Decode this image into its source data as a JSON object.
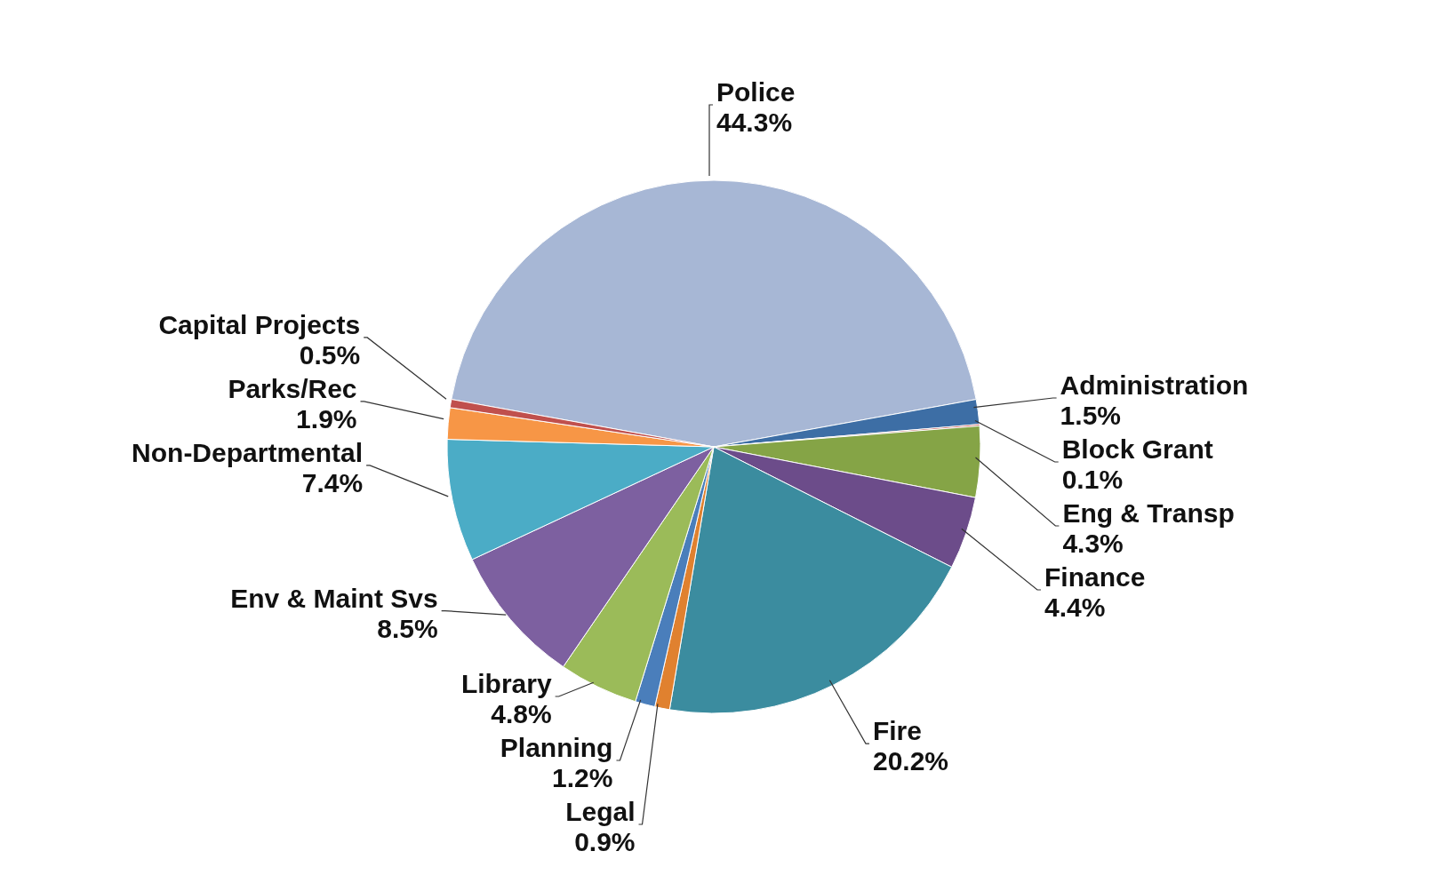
{
  "chart_data": {
    "type": "pie",
    "categories": [
      "Police",
      "Administration",
      "Block Grant",
      "Eng & Transp",
      "Finance",
      "Fire",
      "Legal",
      "Planning",
      "Library",
      "Env & Maint Svs",
      "Non-Departmental",
      "Parks/Rec",
      "Capital Projects"
    ],
    "values": [
      44.3,
      1.5,
      0.1,
      4.3,
      4.4,
      20.2,
      0.9,
      1.2,
      4.8,
      8.5,
      7.4,
      1.9,
      0.5
    ],
    "value_labels": [
      "44.3%",
      "1.5%",
      "0.1%",
      "4.3%",
      "4.4%",
      "20.2%",
      "0.9%",
      "1.2%",
      "4.8%",
      "8.5%",
      "7.4%",
      "1.9%",
      "0.5%"
    ],
    "colors": [
      "#a7b7d5",
      "#3d6ea5",
      "#b9413e",
      "#85a446",
      "#6c4c8a",
      "#3b8c9f",
      "#e0812f",
      "#4a7ebb",
      "#9bbb59",
      "#7d60a0",
      "#4bacc6",
      "#f79646",
      "#c0504d"
    ],
    "legend": false
  }
}
